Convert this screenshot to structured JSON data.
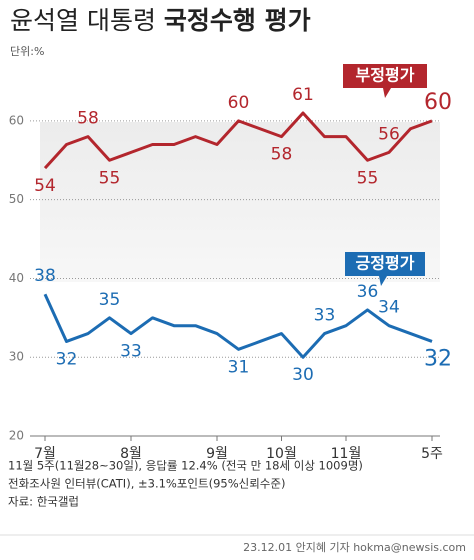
{
  "chart_data": {
    "type": "line",
    "title": "윤석열 대통령",
    "title_bold": "국정수행 평가",
    "unit": "단위:%",
    "categories": [
      "7월",
      null,
      null,
      null,
      "8월",
      null,
      null,
      null,
      "9월",
      null,
      null,
      "10월",
      null,
      null,
      "11월",
      null,
      null,
      null,
      "5주"
    ],
    "series": [
      {
        "name": "부정평가",
        "color": "#b3262d",
        "values": [
          54,
          57,
          58,
          55,
          56,
          57,
          57,
          58,
          57,
          60,
          59,
          58,
          61,
          58,
          58,
          55,
          56,
          59,
          60
        ],
        "value_labels": [
          "54",
          null,
          "58",
          "55",
          null,
          null,
          null,
          null,
          null,
          "60",
          null,
          "58",
          "61",
          null,
          null,
          "55",
          "56",
          null,
          "60"
        ]
      },
      {
        "name": "긍정평가",
        "color": "#1c6cb3",
        "values": [
          38,
          32,
          33,
          35,
          33,
          35,
          34,
          34,
          33,
          31,
          32,
          33,
          30,
          33,
          34,
          36,
          34,
          33,
          32
        ],
        "value_labels": [
          "38",
          "32",
          null,
          "35",
          "33",
          null,
          null,
          null,
          null,
          "31",
          null,
          null,
          "30",
          "33",
          null,
          "36",
          "34",
          null,
          "32"
        ]
      }
    ],
    "ylim": [
      20,
      65
    ],
    "yticks": [
      20,
      30,
      40,
      50,
      60
    ],
    "grid": true,
    "notes": [
      "11월 5주(11월28~30일), 응답률 12.4% (전국 만 18세 이상 1009명)",
      "전화조사원 인터뷰(CATI), ±3.1%포인트(95%신뢰수준)",
      "자료: 한국갤럽"
    ],
    "credit": "23.12.01 안지혜 기자 hokma@newsis.com"
  }
}
